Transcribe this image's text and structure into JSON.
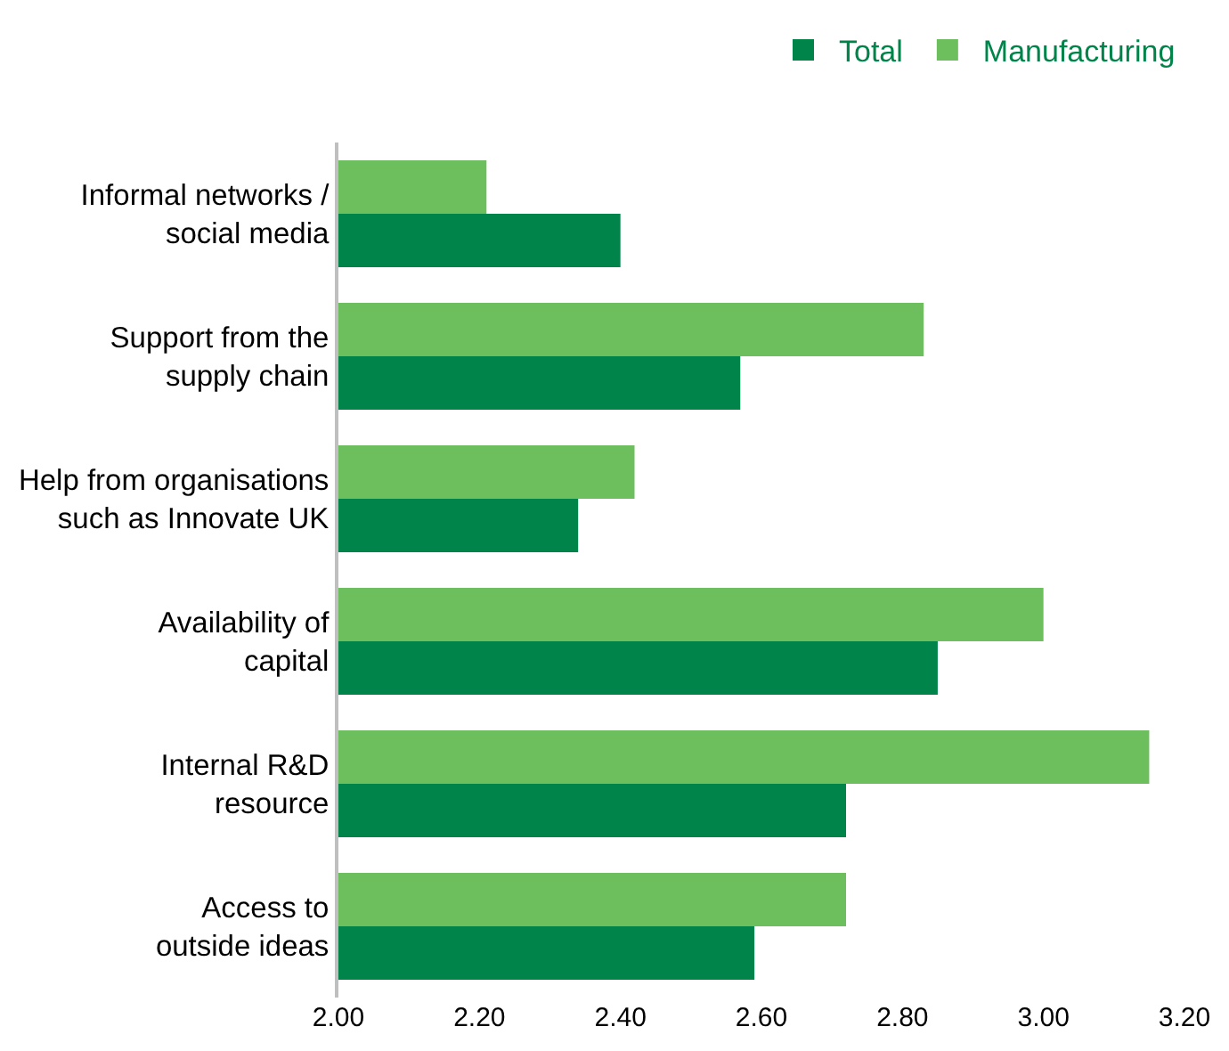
{
  "chart_data": {
    "type": "bar",
    "orientation": "horizontal",
    "categories": [
      "Informal networks /\nsocial media",
      "Support from the\nsupply chain",
      "Help from organisations\nsuch as Innovate UK",
      "Availability of\ncapital",
      "Internal R&D\nresource",
      "Access to\noutside ideas"
    ],
    "series": [
      {
        "name": "Total",
        "color": "#00844a",
        "values": [
          2.4,
          2.57,
          2.34,
          2.85,
          2.72,
          2.59
        ]
      },
      {
        "name": "Manufacturing",
        "color": "#6dbf5e",
        "values": [
          2.21,
          2.83,
          2.42,
          3.0,
          3.15,
          2.72
        ]
      }
    ],
    "xlim": [
      2.0,
      3.2
    ],
    "xticks": [
      {
        "value": 2.0,
        "label": "2.00"
      },
      {
        "value": 2.2,
        "label": "2.20"
      },
      {
        "value": 2.4,
        "label": "2.40"
      },
      {
        "value": 2.6,
        "label": "2.60"
      },
      {
        "value": 2.8,
        "label": "2.80"
      },
      {
        "value": 3.0,
        "label": "3.00"
      },
      {
        "value": 3.2,
        "label": "3.20"
      }
    ],
    "grid": false,
    "legend": "top right"
  }
}
